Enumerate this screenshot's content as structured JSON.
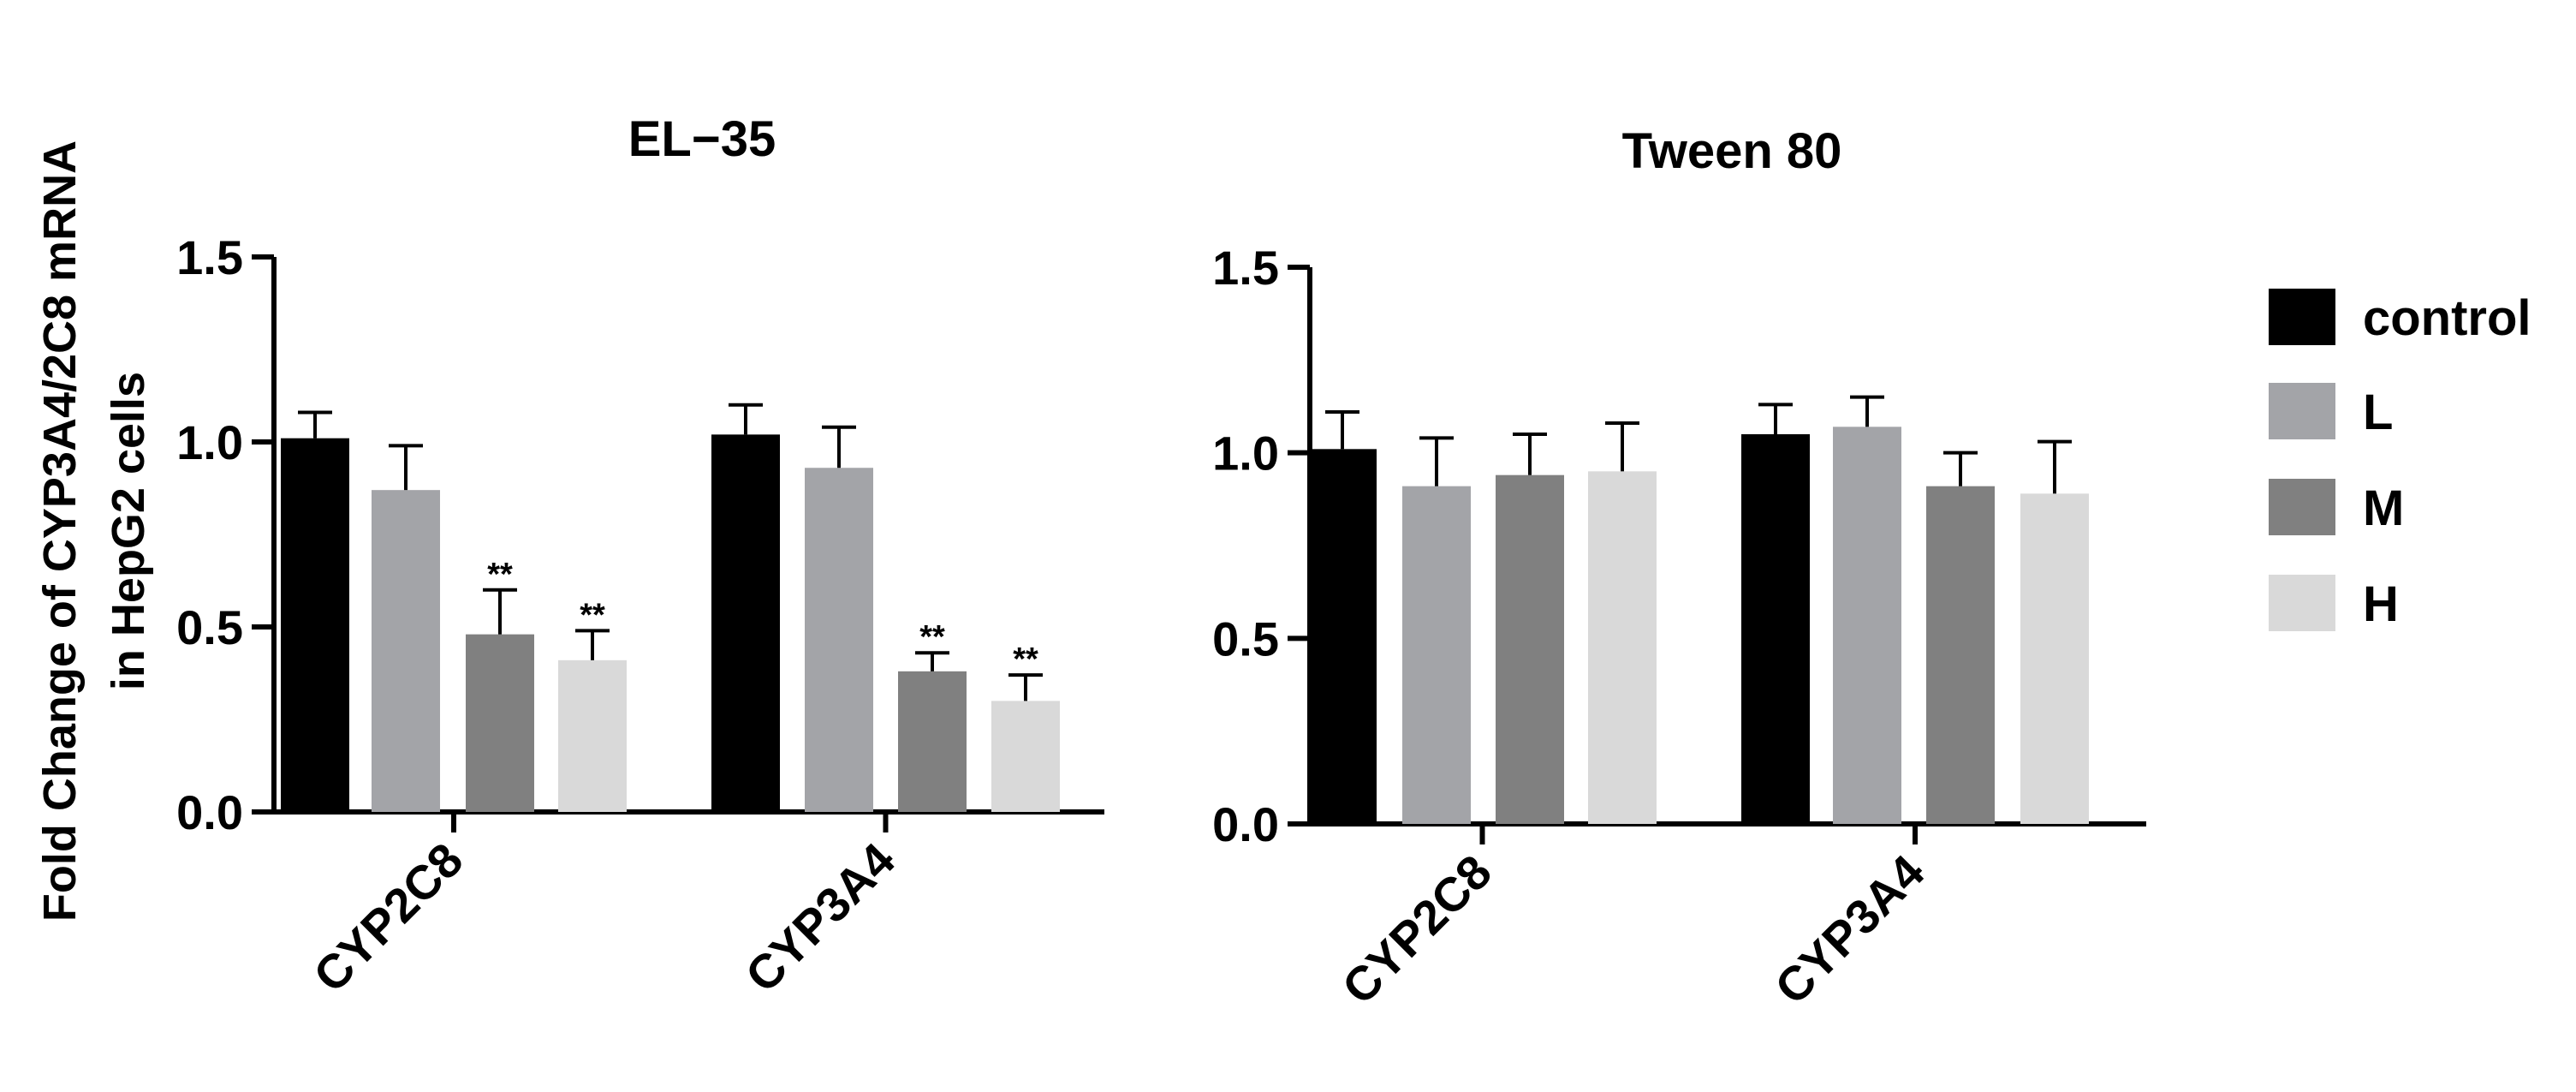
{
  "y_label_lines": [
    "Fold Change of CYP3A4/2C8 mRNA",
    "in HepG2 cells"
  ],
  "legend": [
    {
      "label": "control",
      "color": "#000000"
    },
    {
      "label": "L",
      "color": "#a3a4a8"
    },
    {
      "label": "M",
      "color": "#808080"
    },
    {
      "label": "H",
      "color": "#d9d9d9"
    }
  ],
  "chart_data": [
    {
      "type": "bar",
      "title": "EL−35",
      "xlabel": "",
      "ylabel": "Fold Change of CYP3A4/2C8 mRNA in HepG2 cells",
      "ylim": [
        0,
        1.5
      ],
      "yticks": [
        "0.0",
        "0.5",
        "1.0",
        "1.5"
      ],
      "categories": [
        "CYP2C8",
        "CYP3A4"
      ],
      "series": [
        {
          "name": "control",
          "values": [
            1.01,
            1.02
          ],
          "errors": [
            0.07,
            0.08
          ],
          "sig": [
            "",
            ""
          ]
        },
        {
          "name": "L",
          "values": [
            0.87,
            0.93
          ],
          "errors": [
            0.12,
            0.11
          ],
          "sig": [
            "",
            ""
          ]
        },
        {
          "name": "M",
          "values": [
            0.48,
            0.38
          ],
          "errors": [
            0.12,
            0.05
          ],
          "sig": [
            "**",
            "**"
          ]
        },
        {
          "name": "H",
          "values": [
            0.41,
            0.3
          ],
          "errors": [
            0.08,
            0.07
          ],
          "sig": [
            "**",
            "**"
          ]
        }
      ]
    },
    {
      "type": "bar",
      "title": "Tween 80",
      "xlabel": "",
      "ylabel": "",
      "ylim": [
        0,
        1.5
      ],
      "yticks": [
        "0.0",
        "0.5",
        "1.0",
        "1.5"
      ],
      "categories": [
        "CYP2C8",
        "CYP3A4"
      ],
      "series": [
        {
          "name": "control",
          "values": [
            1.01,
            1.05
          ],
          "errors": [
            0.1,
            0.08
          ],
          "sig": [
            "",
            ""
          ]
        },
        {
          "name": "L",
          "values": [
            0.91,
            1.07
          ],
          "errors": [
            0.13,
            0.08
          ],
          "sig": [
            "",
            ""
          ]
        },
        {
          "name": "M",
          "values": [
            0.94,
            0.91
          ],
          "errors": [
            0.11,
            0.09
          ],
          "sig": [
            "",
            ""
          ]
        },
        {
          "name": "H",
          "values": [
            0.95,
            0.89
          ],
          "errors": [
            0.13,
            0.14
          ],
          "sig": [
            "",
            ""
          ]
        }
      ]
    }
  ]
}
